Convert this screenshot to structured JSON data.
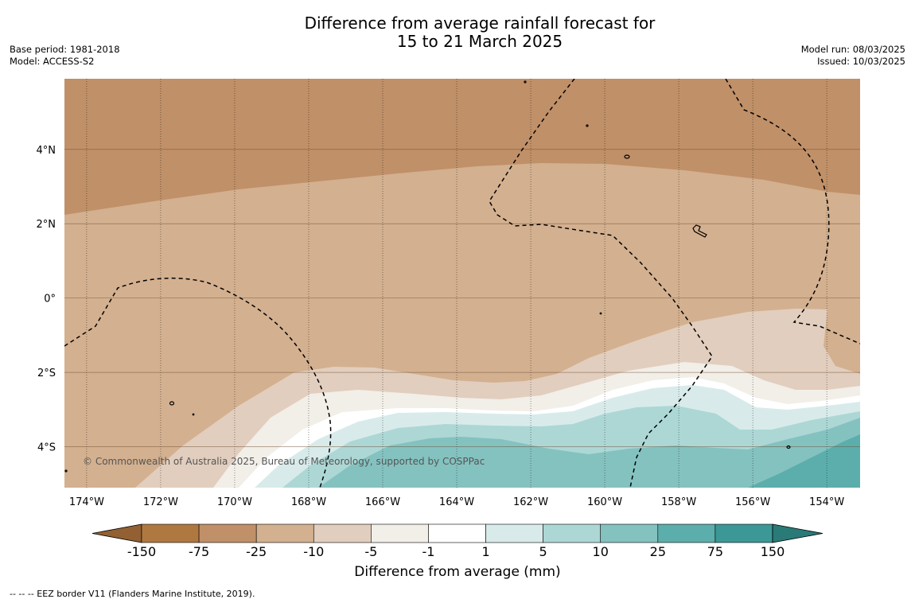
{
  "header": {
    "title_line1": "Difference from average rainfall forecast for",
    "title_line2": "15 to 21 March 2025",
    "base_period": "Base period: 1981-2018",
    "model": "Model: ACCESS-S2",
    "model_run": "Model run: 08/03/2025",
    "issued": "Issued: 10/03/2025"
  },
  "map": {
    "copyright": "© Commonwealth of Australia 2025, Bureau of Meteorology, supported by COSPPac",
    "lon_ticks": [
      "174°W",
      "172°W",
      "170°W",
      "168°W",
      "166°W",
      "164°W",
      "162°W",
      "160°W",
      "158°W",
      "156°W",
      "154°W"
    ],
    "lat_ticks": [
      "4°N",
      "2°N",
      "0°",
      "2°S",
      "4°S"
    ],
    "lat_range": [
      -5.1,
      5.9
    ],
    "lon_range": [
      -174.6,
      -153.1
    ]
  },
  "colorbar": {
    "title": "Difference from average (mm)",
    "ticks": [
      "-150",
      "-75",
      "-25",
      "-10",
      "-5",
      "-1",
      "1",
      "5",
      "10",
      "25",
      "75",
      "150"
    ],
    "colors": [
      "#936033",
      "#b07841",
      "#c09068",
      "#d3b08f",
      "#e2cebe",
      "#f2eee8",
      "#ffffff",
      "#d8ebea",
      "#add7d5",
      "#84c2c0",
      "#5caeac",
      "#3b9896",
      "#2a7a78"
    ]
  },
  "footer": {
    "eez_note": "--  --  -- EEZ border V11 (Flanders Marine Institute, 2019)."
  }
}
